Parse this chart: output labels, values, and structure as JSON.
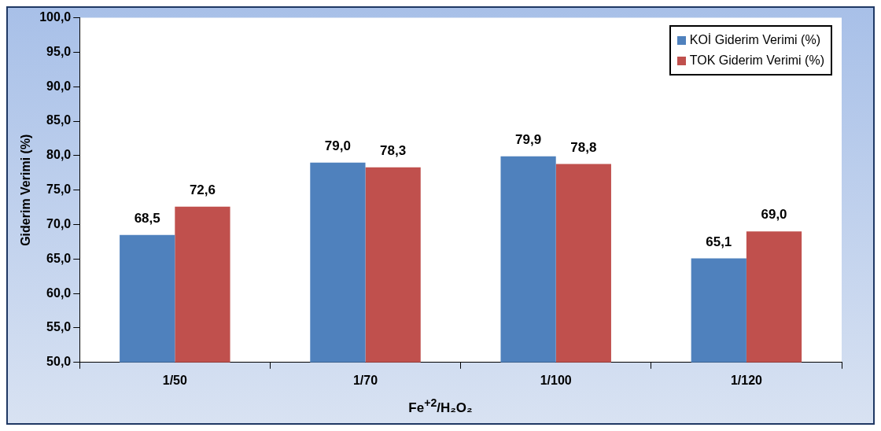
{
  "chart_data": {
    "type": "bar",
    "xlabel": "Fe$^{+2}$/H₂O₂",
    "ylabel": "Giderim Verimi (%)",
    "categories": [
      "1/50",
      "1/70",
      "1/100",
      "1/120"
    ],
    "series": [
      {
        "name": "KOİ Giderim Verimi (%)",
        "color": "#4f81bd",
        "values": [
          68.5,
          79.0,
          79.9,
          65.1
        ],
        "value_labels": [
          "68,5",
          "79,0",
          "79,9",
          "65,1"
        ]
      },
      {
        "name": "TOK Giderim Verimi (%)",
        "color": "#c0504d",
        "values": [
          72.6,
          78.3,
          78.8,
          69.0
        ],
        "value_labels": [
          "72,6",
          "78,3",
          "78,8",
          "69,0"
        ]
      }
    ],
    "ylim": [
      50,
      100
    ],
    "yticks": [
      {
        "value": 50,
        "label": "50,0"
      },
      {
        "value": 55,
        "label": "55,0"
      },
      {
        "value": 60,
        "label": "60,0"
      },
      {
        "value": 65,
        "label": "65,0"
      },
      {
        "value": 70,
        "label": "70,0"
      },
      {
        "value": 75,
        "label": "75,0"
      },
      {
        "value": 80,
        "label": "80,0"
      },
      {
        "value": 85,
        "label": "85,0"
      },
      {
        "value": 90,
        "label": "90,0"
      },
      {
        "value": 95,
        "label": "95,0"
      },
      {
        "value": 100,
        "label": "100,0"
      }
    ],
    "grid": false,
    "legend": "top right"
  }
}
